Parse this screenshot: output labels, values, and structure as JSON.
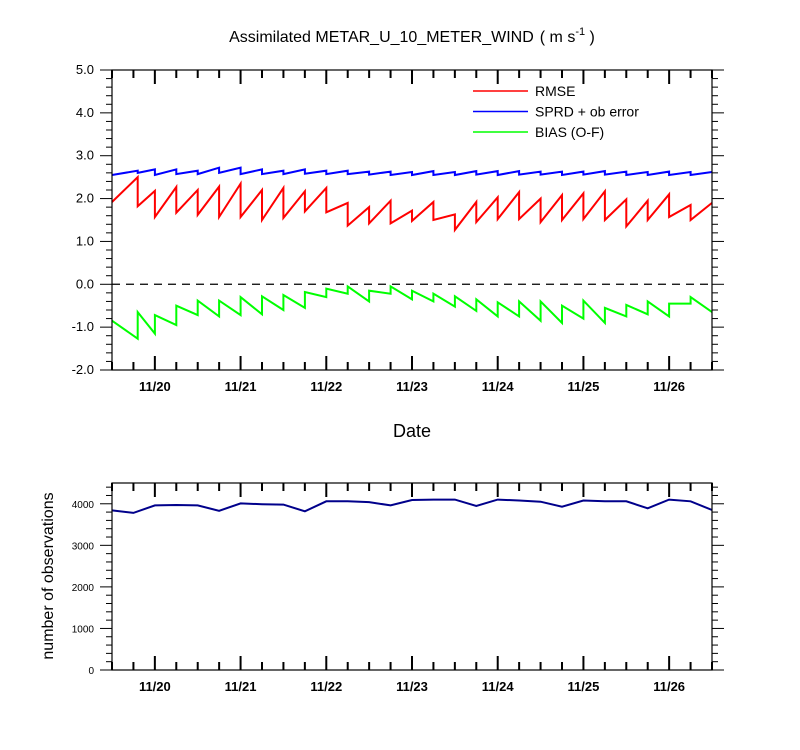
{
  "chart_data": [
    {
      "type": "line",
      "title_main": "Assimilated METAR_U_10_METER_WIND",
      "title_units": "( m s",
      "title_units_sup": "-1",
      "title_units_end": " )",
      "xlabel": "Date",
      "ylabel": "",
      "ylim": [
        -2.0,
        5.0
      ],
      "yticks": [
        "5.0",
        "4.0",
        "3.0",
        "2.0",
        "1.0",
        "0.0",
        "-1.0",
        "-2.0"
      ],
      "ytick_values": [
        5,
        4,
        3,
        2,
        1,
        0,
        -1,
        -2
      ],
      "xlim": [
        19.5,
        26.5
      ],
      "xticks": [
        "11/20",
        "11/21",
        "11/22",
        "11/23",
        "11/24",
        "11/25",
        "11/26"
      ],
      "xtick_values": [
        20,
        21,
        22,
        23,
        24,
        25,
        26
      ],
      "zero_line": "dashed",
      "legend_position": "top-right",
      "series": [
        {
          "name": "RMSE",
          "color": "#ff0000",
          "points": [
            [
              19.5,
              1.92
            ],
            [
              19.8,
              2.5
            ],
            [
              19.8,
              1.82
            ],
            [
              20.0,
              2.18
            ],
            [
              20.0,
              1.57
            ],
            [
              20.25,
              2.27
            ],
            [
              20.25,
              1.67
            ],
            [
              20.5,
              2.2
            ],
            [
              20.5,
              1.62
            ],
            [
              20.75,
              2.28
            ],
            [
              20.75,
              1.57
            ],
            [
              21.0,
              2.35
            ],
            [
              21.0,
              1.57
            ],
            [
              21.25,
              2.2
            ],
            [
              21.25,
              1.5
            ],
            [
              21.5,
              2.25
            ],
            [
              21.5,
              1.55
            ],
            [
              21.75,
              2.17
            ],
            [
              21.75,
              1.7
            ],
            [
              22.0,
              2.25
            ],
            [
              22.0,
              1.68
            ],
            [
              22.25,
              1.9
            ],
            [
              22.25,
              1.37
            ],
            [
              22.5,
              1.8
            ],
            [
              22.5,
              1.42
            ],
            [
              22.75,
              1.95
            ],
            [
              22.75,
              1.42
            ],
            [
              23.0,
              1.72
            ],
            [
              23.0,
              1.48
            ],
            [
              23.25,
              1.92
            ],
            [
              23.25,
              1.5
            ],
            [
              23.5,
              1.63
            ],
            [
              23.5,
              1.27
            ],
            [
              23.75,
              1.92
            ],
            [
              23.75,
              1.45
            ],
            [
              24.0,
              2.03
            ],
            [
              24.0,
              1.52
            ],
            [
              24.25,
              2.15
            ],
            [
              24.25,
              1.52
            ],
            [
              24.5,
              2.0
            ],
            [
              24.5,
              1.45
            ],
            [
              24.75,
              2.08
            ],
            [
              24.75,
              1.5
            ],
            [
              25.0,
              2.12
            ],
            [
              25.0,
              1.52
            ],
            [
              25.25,
              2.17
            ],
            [
              25.25,
              1.5
            ],
            [
              25.5,
              1.98
            ],
            [
              25.5,
              1.35
            ],
            [
              25.75,
              1.95
            ],
            [
              25.75,
              1.5
            ],
            [
              26.0,
              2.1
            ],
            [
              26.0,
              1.57
            ],
            [
              26.25,
              1.85
            ],
            [
              26.25,
              1.5
            ],
            [
              26.5,
              1.9
            ]
          ]
        },
        {
          "name": "SPRD + ob error",
          "color": "#0000ff",
          "points": [
            [
              19.5,
              2.55
            ],
            [
              19.8,
              2.65
            ],
            [
              19.8,
              2.6
            ],
            [
              20.0,
              2.68
            ],
            [
              20.0,
              2.55
            ],
            [
              20.25,
              2.68
            ],
            [
              20.25,
              2.57
            ],
            [
              20.5,
              2.65
            ],
            [
              20.5,
              2.57
            ],
            [
              20.75,
              2.72
            ],
            [
              20.75,
              2.6
            ],
            [
              21.0,
              2.72
            ],
            [
              21.0,
              2.57
            ],
            [
              21.25,
              2.68
            ],
            [
              21.25,
              2.57
            ],
            [
              21.5,
              2.65
            ],
            [
              21.5,
              2.57
            ],
            [
              21.75,
              2.68
            ],
            [
              21.75,
              2.58
            ],
            [
              22.0,
              2.65
            ],
            [
              22.0,
              2.57
            ],
            [
              22.25,
              2.65
            ],
            [
              22.25,
              2.57
            ],
            [
              22.5,
              2.63
            ],
            [
              22.5,
              2.56
            ],
            [
              22.75,
              2.63
            ],
            [
              22.75,
              2.55
            ],
            [
              23.0,
              2.62
            ],
            [
              23.0,
              2.55
            ],
            [
              23.25,
              2.64
            ],
            [
              23.25,
              2.55
            ],
            [
              23.5,
              2.62
            ],
            [
              23.5,
              2.55
            ],
            [
              23.75,
              2.64
            ],
            [
              23.75,
              2.56
            ],
            [
              24.0,
              2.64
            ],
            [
              24.0,
              2.55
            ],
            [
              24.25,
              2.64
            ],
            [
              24.25,
              2.56
            ],
            [
              24.5,
              2.63
            ],
            [
              24.5,
              2.56
            ],
            [
              24.75,
              2.63
            ],
            [
              24.75,
              2.55
            ],
            [
              25.0,
              2.63
            ],
            [
              25.0,
              2.56
            ],
            [
              25.25,
              2.64
            ],
            [
              25.25,
              2.56
            ],
            [
              25.5,
              2.63
            ],
            [
              25.5,
              2.55
            ],
            [
              25.75,
              2.62
            ],
            [
              25.75,
              2.55
            ],
            [
              26.0,
              2.63
            ],
            [
              26.0,
              2.55
            ],
            [
              26.25,
              2.62
            ],
            [
              26.25,
              2.55
            ],
            [
              26.5,
              2.62
            ]
          ]
        },
        {
          "name": "BIAS (O-F)",
          "color": "#00ff00",
          "points": [
            [
              19.5,
              -0.85
            ],
            [
              19.8,
              -1.27
            ],
            [
              19.8,
              -0.65
            ],
            [
              20.0,
              -1.15
            ],
            [
              20.0,
              -0.72
            ],
            [
              20.25,
              -0.95
            ],
            [
              20.25,
              -0.5
            ],
            [
              20.5,
              -0.72
            ],
            [
              20.5,
              -0.38
            ],
            [
              20.75,
              -0.75
            ],
            [
              20.75,
              -0.38
            ],
            [
              21.0,
              -0.72
            ],
            [
              21.0,
              -0.3
            ],
            [
              21.25,
              -0.7
            ],
            [
              21.25,
              -0.28
            ],
            [
              21.5,
              -0.6
            ],
            [
              21.5,
              -0.25
            ],
            [
              21.75,
              -0.55
            ],
            [
              21.75,
              -0.18
            ],
            [
              22.0,
              -0.3
            ],
            [
              22.0,
              -0.1
            ],
            [
              22.25,
              -0.22
            ],
            [
              22.25,
              -0.05
            ],
            [
              22.5,
              -0.4
            ],
            [
              22.5,
              -0.15
            ],
            [
              22.75,
              -0.22
            ],
            [
              22.75,
              -0.05
            ],
            [
              23.0,
              -0.35
            ],
            [
              23.0,
              -0.15
            ],
            [
              23.25,
              -0.4
            ],
            [
              23.25,
              -0.22
            ],
            [
              23.5,
              -0.52
            ],
            [
              23.5,
              -0.28
            ],
            [
              23.75,
              -0.62
            ],
            [
              23.75,
              -0.35
            ],
            [
              24.0,
              -0.75
            ],
            [
              24.0,
              -0.42
            ],
            [
              24.25,
              -0.75
            ],
            [
              24.25,
              -0.4
            ],
            [
              24.5,
              -0.85
            ],
            [
              24.5,
              -0.4
            ],
            [
              24.75,
              -0.9
            ],
            [
              24.75,
              -0.5
            ],
            [
              25.0,
              -0.8
            ],
            [
              25.0,
              -0.38
            ],
            [
              25.25,
              -0.9
            ],
            [
              25.25,
              -0.55
            ],
            [
              25.5,
              -0.75
            ],
            [
              25.5,
              -0.48
            ],
            [
              25.75,
              -0.7
            ],
            [
              25.75,
              -0.4
            ],
            [
              26.0,
              -0.75
            ],
            [
              26.0,
              -0.45
            ],
            [
              26.25,
              -0.45
            ],
            [
              26.25,
              -0.3
            ],
            [
              26.5,
              -0.65
            ]
          ]
        }
      ]
    },
    {
      "type": "line",
      "title": "",
      "xlabel": "",
      "ylabel": "number of observations",
      "ylim": [
        0,
        4500
      ],
      "yticks": [
        "4000",
        "3000",
        "2000",
        "1000",
        "0"
      ],
      "ytick_values": [
        4000,
        3000,
        2000,
        1000,
        0
      ],
      "xlim": [
        19.5,
        26.5
      ],
      "xticks": [
        "11/20",
        "11/21",
        "11/22",
        "11/23",
        "11/24",
        "11/25",
        "11/26"
      ],
      "xtick_values": [
        20,
        21,
        22,
        23,
        24,
        25,
        26
      ],
      "series": [
        {
          "color": "#00008b",
          "x": [
            19.5,
            19.75,
            20.0,
            20.25,
            20.5,
            20.75,
            21.0,
            21.25,
            21.5,
            21.75,
            22.0,
            22.25,
            22.5,
            22.75,
            23.0,
            23.25,
            23.5,
            23.75,
            24.0,
            24.25,
            24.5,
            24.75,
            25.0,
            25.25,
            25.5,
            25.75,
            26.0,
            26.25,
            26.5
          ],
          "y": [
            3840,
            3780,
            3960,
            3970,
            3960,
            3830,
            4010,
            3990,
            3980,
            3820,
            4060,
            4060,
            4040,
            3960,
            4090,
            4100,
            4100,
            3950,
            4100,
            4080,
            4050,
            3930,
            4080,
            4060,
            4060,
            3890,
            4100,
            4060,
            3850
          ]
        }
      ]
    }
  ]
}
